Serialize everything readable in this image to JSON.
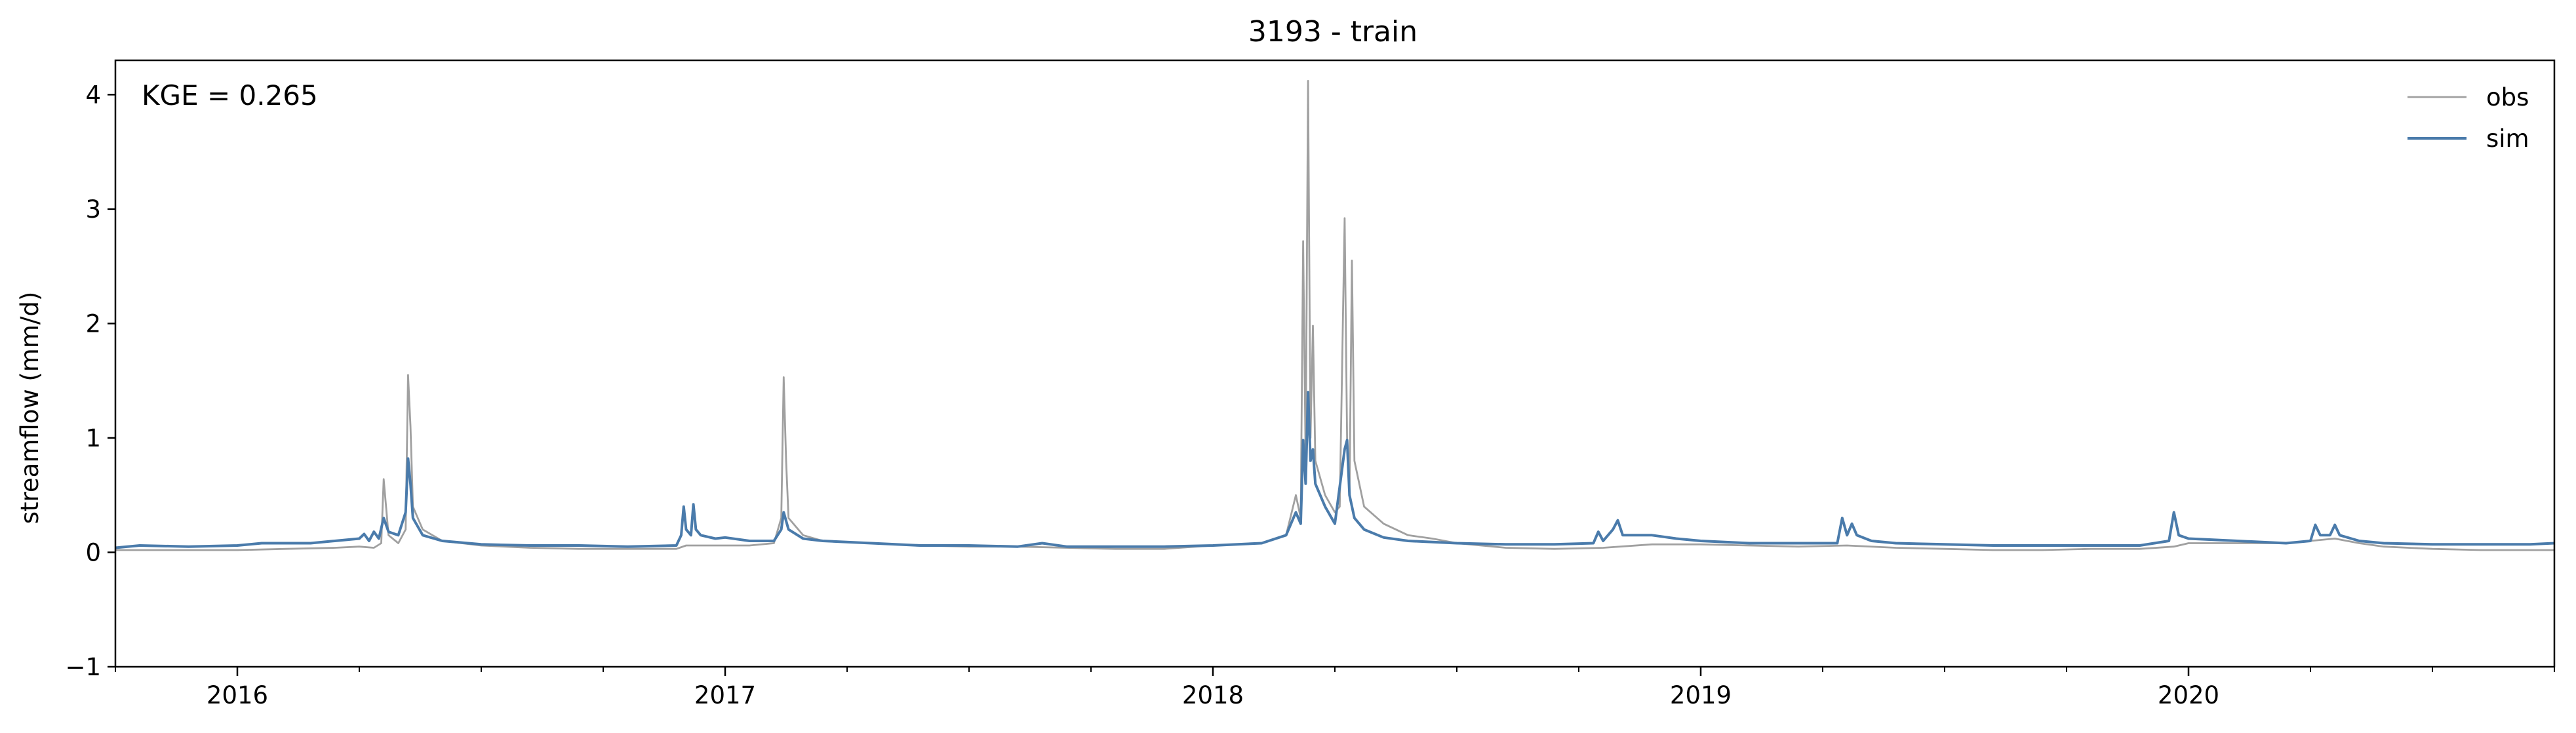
{
  "chart_data": {
    "type": "line",
    "title": "3193 - train",
    "xlabel": "",
    "ylabel": "streamflow (mm/d)",
    "annotation": "KGE = 0.265",
    "xlim": [
      2015.75,
      2020.75
    ],
    "ylim": [
      -1,
      4.3
    ],
    "yticks": [
      -1,
      0,
      1,
      2,
      3,
      4
    ],
    "ytick_labels": [
      "−1",
      "0",
      "1",
      "2",
      "3",
      "4"
    ],
    "xticks": [
      2016,
      2017,
      2018,
      2019,
      2020
    ],
    "xtick_labels": [
      "2016",
      "2017",
      "2018",
      "2019",
      "2020"
    ],
    "legend_position": "top-right",
    "grid": false,
    "series": [
      {
        "name": "obs",
        "color": "#a0a0a0",
        "points": [
          [
            2015.75,
            0.02
          ],
          [
            2015.9,
            0.02
          ],
          [
            2016.0,
            0.02
          ],
          [
            2016.1,
            0.03
          ],
          [
            2016.2,
            0.04
          ],
          [
            2016.25,
            0.05
          ],
          [
            2016.28,
            0.04
          ],
          [
            2016.295,
            0.08
          ],
          [
            2016.3,
            0.64
          ],
          [
            2016.31,
            0.15
          ],
          [
            2016.33,
            0.08
          ],
          [
            2016.345,
            0.2
          ],
          [
            2016.35,
            1.55
          ],
          [
            2016.355,
            1.1
          ],
          [
            2016.36,
            0.4
          ],
          [
            2016.38,
            0.2
          ],
          [
            2016.42,
            0.1
          ],
          [
            2016.5,
            0.06
          ],
          [
            2016.6,
            0.04
          ],
          [
            2016.7,
            0.03
          ],
          [
            2016.8,
            0.03
          ],
          [
            2016.9,
            0.03
          ],
          [
            2016.92,
            0.06
          ],
          [
            2016.95,
            0.06
          ],
          [
            2017.0,
            0.06
          ],
          [
            2017.05,
            0.06
          ],
          [
            2017.1,
            0.08
          ],
          [
            2017.115,
            0.3
          ],
          [
            2017.12,
            1.53
          ],
          [
            2017.125,
            0.8
          ],
          [
            2017.13,
            0.3
          ],
          [
            2017.16,
            0.15
          ],
          [
            2017.2,
            0.1
          ],
          [
            2017.3,
            0.08
          ],
          [
            2017.4,
            0.06
          ],
          [
            2017.5,
            0.05
          ],
          [
            2017.6,
            0.05
          ],
          [
            2017.7,
            0.04
          ],
          [
            2017.8,
            0.03
          ],
          [
            2017.9,
            0.03
          ],
          [
            2018.0,
            0.06
          ],
          [
            2018.1,
            0.08
          ],
          [
            2018.15,
            0.15
          ],
          [
            2018.17,
            0.5
          ],
          [
            2018.18,
            0.3
          ],
          [
            2018.185,
            2.72
          ],
          [
            2018.19,
            0.8
          ],
          [
            2018.195,
            4.12
          ],
          [
            2018.2,
            1.0
          ],
          [
            2018.205,
            1.98
          ],
          [
            2018.21,
            0.8
          ],
          [
            2018.23,
            0.5
          ],
          [
            2018.25,
            0.35
          ],
          [
            2018.26,
            0.4
          ],
          [
            2018.27,
            2.92
          ],
          [
            2018.275,
            1.0
          ],
          [
            2018.28,
            0.5
          ],
          [
            2018.285,
            2.55
          ],
          [
            2018.29,
            0.8
          ],
          [
            2018.31,
            0.4
          ],
          [
            2018.35,
            0.25
          ],
          [
            2018.4,
            0.15
          ],
          [
            2018.45,
            0.12
          ],
          [
            2018.5,
            0.08
          ],
          [
            2018.6,
            0.04
          ],
          [
            2018.7,
            0.03
          ],
          [
            2018.8,
            0.04
          ],
          [
            2018.9,
            0.07
          ],
          [
            2019.0,
            0.07
          ],
          [
            2019.1,
            0.06
          ],
          [
            2019.2,
            0.05
          ],
          [
            2019.3,
            0.06
          ],
          [
            2019.4,
            0.04
          ],
          [
            2019.5,
            0.03
          ],
          [
            2019.6,
            0.02
          ],
          [
            2019.7,
            0.02
          ],
          [
            2019.8,
            0.03
          ],
          [
            2019.9,
            0.03
          ],
          [
            2019.97,
            0.05
          ],
          [
            2020.0,
            0.08
          ],
          [
            2020.1,
            0.08
          ],
          [
            2020.2,
            0.08
          ],
          [
            2020.25,
            0.1
          ],
          [
            2020.3,
            0.12
          ],
          [
            2020.35,
            0.08
          ],
          [
            2020.4,
            0.05
          ],
          [
            2020.5,
            0.03
          ],
          [
            2020.6,
            0.02
          ],
          [
            2020.7,
            0.02
          ],
          [
            2020.75,
            0.02
          ]
        ]
      },
      {
        "name": "sim",
        "color": "#4a7bab",
        "points": [
          [
            2015.75,
            0.04
          ],
          [
            2015.8,
            0.06
          ],
          [
            2015.9,
            0.05
          ],
          [
            2016.0,
            0.06
          ],
          [
            2016.05,
            0.08
          ],
          [
            2016.1,
            0.08
          ],
          [
            2016.15,
            0.08
          ],
          [
            2016.2,
            0.1
          ],
          [
            2016.25,
            0.12
          ],
          [
            2016.26,
            0.16
          ],
          [
            2016.27,
            0.1
          ],
          [
            2016.28,
            0.18
          ],
          [
            2016.29,
            0.12
          ],
          [
            2016.3,
            0.3
          ],
          [
            2016.31,
            0.18
          ],
          [
            2016.33,
            0.15
          ],
          [
            2016.345,
            0.35
          ],
          [
            2016.35,
            0.82
          ],
          [
            2016.355,
            0.6
          ],
          [
            2016.36,
            0.3
          ],
          [
            2016.38,
            0.15
          ],
          [
            2016.42,
            0.1
          ],
          [
            2016.5,
            0.07
          ],
          [
            2016.6,
            0.06
          ],
          [
            2016.7,
            0.06
          ],
          [
            2016.8,
            0.05
          ],
          [
            2016.9,
            0.06
          ],
          [
            2016.91,
            0.15
          ],
          [
            2016.915,
            0.4
          ],
          [
            2016.92,
            0.2
          ],
          [
            2016.93,
            0.15
          ],
          [
            2016.935,
            0.42
          ],
          [
            2016.94,
            0.2
          ],
          [
            2016.95,
            0.15
          ],
          [
            2016.98,
            0.12
          ],
          [
            2017.0,
            0.13
          ],
          [
            2017.05,
            0.1
          ],
          [
            2017.1,
            0.1
          ],
          [
            2017.115,
            0.2
          ],
          [
            2017.12,
            0.35
          ],
          [
            2017.13,
            0.2
          ],
          [
            2017.16,
            0.12
          ],
          [
            2017.2,
            0.1
          ],
          [
            2017.3,
            0.08
          ],
          [
            2017.4,
            0.06
          ],
          [
            2017.5,
            0.06
          ],
          [
            2017.6,
            0.05
          ],
          [
            2017.65,
            0.08
          ],
          [
            2017.7,
            0.05
          ],
          [
            2017.8,
            0.05
          ],
          [
            2017.9,
            0.05
          ],
          [
            2018.0,
            0.06
          ],
          [
            2018.1,
            0.08
          ],
          [
            2018.15,
            0.15
          ],
          [
            2018.17,
            0.35
          ],
          [
            2018.18,
            0.25
          ],
          [
            2018.185,
            0.98
          ],
          [
            2018.19,
            0.6
          ],
          [
            2018.195,
            1.4
          ],
          [
            2018.2,
            0.8
          ],
          [
            2018.205,
            0.9
          ],
          [
            2018.21,
            0.6
          ],
          [
            2018.23,
            0.4
          ],
          [
            2018.25,
            0.25
          ],
          [
            2018.27,
            0.9
          ],
          [
            2018.275,
            0.98
          ],
          [
            2018.28,
            0.5
          ],
          [
            2018.29,
            0.3
          ],
          [
            2018.31,
            0.2
          ],
          [
            2018.35,
            0.13
          ],
          [
            2018.4,
            0.1
          ],
          [
            2018.5,
            0.08
          ],
          [
            2018.6,
            0.07
          ],
          [
            2018.7,
            0.07
          ],
          [
            2018.78,
            0.08
          ],
          [
            2018.79,
            0.18
          ],
          [
            2018.8,
            0.1
          ],
          [
            2018.82,
            0.2
          ],
          [
            2018.83,
            0.28
          ],
          [
            2018.84,
            0.15
          ],
          [
            2018.9,
            0.15
          ],
          [
            2018.95,
            0.12
          ],
          [
            2019.0,
            0.1
          ],
          [
            2019.1,
            0.08
          ],
          [
            2019.2,
            0.08
          ],
          [
            2019.28,
            0.08
          ],
          [
            2019.29,
            0.3
          ],
          [
            2019.3,
            0.15
          ],
          [
            2019.31,
            0.25
          ],
          [
            2019.32,
            0.15
          ],
          [
            2019.35,
            0.1
          ],
          [
            2019.4,
            0.08
          ],
          [
            2019.5,
            0.07
          ],
          [
            2019.6,
            0.06
          ],
          [
            2019.7,
            0.06
          ],
          [
            2019.8,
            0.06
          ],
          [
            2019.9,
            0.06
          ],
          [
            2019.96,
            0.1
          ],
          [
            2019.97,
            0.35
          ],
          [
            2019.98,
            0.15
          ],
          [
            2020.0,
            0.12
          ],
          [
            2020.1,
            0.1
          ],
          [
            2020.2,
            0.08
          ],
          [
            2020.25,
            0.1
          ],
          [
            2020.26,
            0.24
          ],
          [
            2020.27,
            0.15
          ],
          [
            2020.29,
            0.15
          ],
          [
            2020.3,
            0.24
          ],
          [
            2020.31,
            0.15
          ],
          [
            2020.35,
            0.1
          ],
          [
            2020.4,
            0.08
          ],
          [
            2020.5,
            0.07
          ],
          [
            2020.6,
            0.07
          ],
          [
            2020.7,
            0.07
          ],
          [
            2020.75,
            0.08
          ]
        ]
      }
    ]
  }
}
